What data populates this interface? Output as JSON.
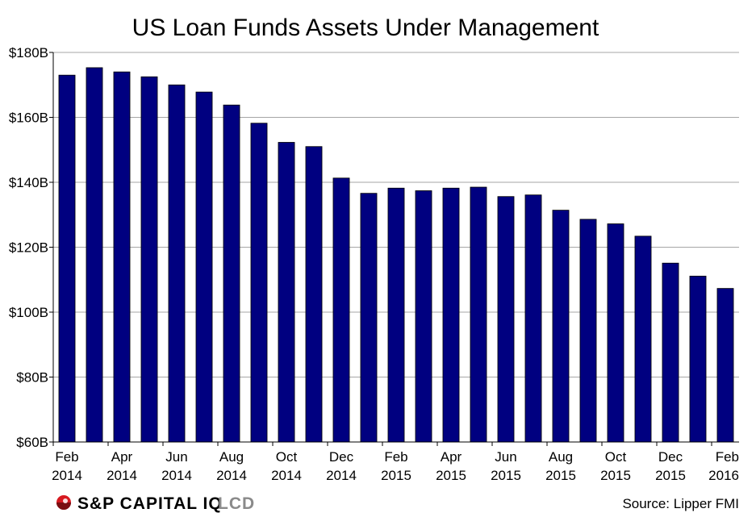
{
  "chart_data": {
    "type": "bar",
    "title": "US Loan Funds Assets Under Management",
    "categories": [
      "Feb 2014",
      "Mar 2014",
      "Apr 2014",
      "May 2014",
      "Jun 2014",
      "Jul 2014",
      "Aug 2014",
      "Sep 2014",
      "Oct 2014",
      "Nov 2014",
      "Dec 2014",
      "Jan 2015",
      "Feb 2015",
      "Mar 2015",
      "Apr 2015",
      "May 2015",
      "Jun 2015",
      "Jul 2015",
      "Aug 2015",
      "Sep 2015",
      "Oct 2015",
      "Nov 2015",
      "Dec 2015",
      "Jan 2016",
      "Feb 2016"
    ],
    "values": [
      173,
      175.3,
      174,
      172.5,
      170,
      167.8,
      163.8,
      158.2,
      152.3,
      151,
      141.3,
      136.6,
      138.2,
      137.4,
      138.2,
      138.5,
      135.6,
      136.1,
      131.4,
      128.6,
      127.2,
      123.4,
      115.1,
      111.1,
      107.3
    ],
    "ylim": [
      60,
      180
    ],
    "yticks": [
      60,
      80,
      100,
      120,
      140,
      160,
      180
    ],
    "ytick_labels": [
      "$60B",
      "$80B",
      "$100B",
      "$120B",
      "$140B",
      "$160B",
      "$180B"
    ],
    "xtick_labels": [
      {
        "index": 0,
        "line1": "Feb",
        "line2": "2014"
      },
      {
        "index": 2,
        "line1": "Apr",
        "line2": "2014"
      },
      {
        "index": 4,
        "line1": "Jun",
        "line2": "2014"
      },
      {
        "index": 6,
        "line1": "Aug",
        "line2": "2014"
      },
      {
        "index": 8,
        "line1": "Oct",
        "line2": "2014"
      },
      {
        "index": 10,
        "line1": "Dec",
        "line2": "2014"
      },
      {
        "index": 12,
        "line1": "Feb",
        "line2": "2015"
      },
      {
        "index": 14,
        "line1": "Apr",
        "line2": "2015"
      },
      {
        "index": 16,
        "line1": "Jun",
        "line2": "2015"
      },
      {
        "index": 18,
        "line1": "Aug",
        "line2": "2015"
      },
      {
        "index": 20,
        "line1": "Oct",
        "line2": "2015"
      },
      {
        "index": 22,
        "line1": "Dec",
        "line2": "2015"
      },
      {
        "index": 24,
        "line1": "Feb",
        "line2": "2016"
      }
    ],
    "grid": true,
    "bar_color": "#000080",
    "source": "Source: Lipper FMI"
  },
  "branding": {
    "part1": "S&P CAPITAL IQ",
    "part2": "LCD",
    "color_primary": "#000000",
    "color_secondary": "#8a8a8a",
    "logo_color": "#d71920"
  }
}
